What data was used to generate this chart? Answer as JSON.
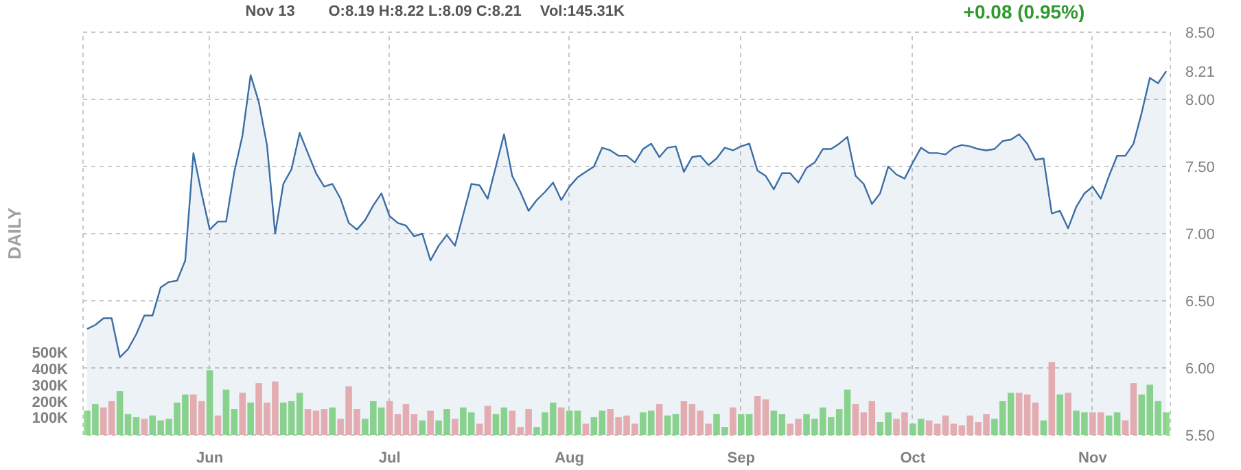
{
  "chart_data": {
    "type": "area",
    "categories": [
      null,
      null,
      null,
      null,
      null,
      null,
      null,
      null,
      null,
      null,
      null,
      null,
      null,
      null,
      null,
      "Jun",
      null,
      null,
      null,
      null,
      null,
      null,
      null,
      null,
      null,
      null,
      null,
      null,
      null,
      null,
      null,
      null,
      null,
      null,
      null,
      null,
      null,
      "Jul",
      null,
      null,
      null,
      null,
      null,
      null,
      null,
      null,
      null,
      null,
      null,
      null,
      null,
      null,
      null,
      null,
      null,
      null,
      null,
      null,
      null,
      "Aug",
      null,
      null,
      null,
      null,
      null,
      null,
      null,
      null,
      null,
      null,
      null,
      null,
      null,
      null,
      null,
      null,
      null,
      null,
      null,
      null,
      "Sep",
      null,
      null,
      null,
      null,
      null,
      null,
      null,
      null,
      null,
      null,
      null,
      null,
      null,
      null,
      null,
      null,
      null,
      null,
      null,
      null,
      "Oct",
      null,
      null,
      null,
      null,
      null,
      null,
      null,
      null,
      null,
      null,
      null,
      null,
      null,
      null,
      null,
      null,
      null,
      null,
      null,
      null,
      null,
      "Nov",
      null,
      null,
      null,
      null,
      null,
      null,
      null,
      null,
      null
    ],
    "series": [
      {
        "color": "#3b6ea5",
        "values": [
          6.29,
          6.32,
          6.37,
          6.37,
          6.08,
          6.14,
          6.25,
          6.39,
          6.39,
          6.6,
          6.64,
          6.65,
          6.8,
          7.6,
          7.3,
          7.03,
          7.09,
          7.09,
          7.46,
          7.73,
          8.18,
          7.98,
          7.66,
          7.0,
          7.37,
          7.48,
          7.75,
          7.6,
          7.45,
          7.35,
          7.37,
          7.26,
          7.08,
          7.03,
          7.1,
          7.21,
          7.3,
          7.13,
          7.08,
          7.06,
          6.98,
          7.0,
          6.8,
          6.91,
          6.99,
          6.91,
          7.14,
          7.37,
          7.36,
          7.26,
          7.5,
          7.74,
          7.43,
          7.31,
          7.17,
          7.25,
          7.31,
          7.38,
          7.25,
          7.35,
          7.42,
          7.46,
          7.5,
          7.64,
          7.62,
          7.58,
          7.58,
          7.53,
          7.63,
          7.67,
          7.57,
          7.64,
          7.65,
          7.46,
          7.57,
          7.58,
          7.51,
          7.56,
          7.64,
          7.62,
          7.65,
          7.67,
          7.47,
          7.43,
          7.33,
          7.45,
          7.45,
          7.38,
          7.49,
          7.53,
          7.63,
          7.63,
          7.67,
          7.72,
          7.43,
          7.37,
          7.22,
          7.3,
          7.5,
          7.44,
          7.41,
          7.53,
          7.64,
          7.6,
          7.6,
          7.59,
          7.64,
          7.66,
          7.65,
          7.63,
          7.62,
          7.63,
          7.69,
          7.7,
          7.74,
          7.67,
          7.55,
          7.56,
          7.15,
          7.17,
          7.04,
          7.2,
          7.3,
          7.35,
          7.26,
          7.43,
          7.58,
          7.58,
          7.67,
          7.9,
          8.16,
          8.12,
          8.21
        ]
      },
      {
        "type": "bar",
        "axis": "y2",
        "values": [
          150,
          190,
          170,
          210,
          270,
          130,
          110,
          100,
          120,
          90,
          100,
          200,
          250,
          250,
          210,
          400,
          120,
          280,
          160,
          260,
          200,
          320,
          200,
          330,
          200,
          210,
          260,
          160,
          150,
          160,
          170,
          100,
          300,
          160,
          100,
          210,
          170,
          210,
          130,
          190,
          130,
          90,
          150,
          90,
          160,
          100,
          170,
          140,
          70,
          180,
          130,
          170,
          150,
          50,
          160,
          50,
          140,
          200,
          170,
          150,
          150,
          70,
          110,
          150,
          160,
          110,
          120,
          70,
          140,
          150,
          190,
          120,
          130,
          210,
          190,
          150,
          70,
          130,
          50,
          170,
          130,
          130,
          240,
          220,
          150,
          130,
          70,
          100,
          130,
          100,
          170,
          110,
          160,
          280,
          190,
          140,
          210,
          80,
          140,
          100,
          140,
          70,
          100,
          90,
          70,
          120,
          70,
          60,
          120,
          80,
          130,
          100,
          210,
          260,
          260,
          250,
          200,
          90,
          450,
          250,
          260,
          150,
          140,
          140,
          140,
          120,
          140,
          90,
          320,
          250,
          310,
          210,
          140
        ],
        "colors": [
          "#90dc8c",
          "#90dc8c",
          "#f5b3b3",
          "#f5b3b3",
          "#90dc8c",
          "#90dc8c",
          "#90dc8c",
          "#f5b3b3",
          "#90dc8c",
          "#90dc8c",
          "#90dc8c",
          "#90dc8c",
          "#90dc8c",
          "#f5b3b3",
          "#f5b3b3",
          "#90dc8c",
          "#f5b3b3",
          "#90dc8c",
          "#90dc8c",
          "#f5b3b3",
          "#90dc8c",
          "#f5b3b3",
          "#f5b3b3",
          "#f5b3b3",
          "#90dc8c",
          "#90dc8c",
          "#90dc8c",
          "#f5b3b3",
          "#f5b3b3",
          "#f5b3b3",
          "#90dc8c",
          "#f5b3b3",
          "#f5b3b3",
          "#f5b3b3",
          "#90dc8c",
          "#90dc8c",
          "#90dc8c",
          "#f5b3b3",
          "#f5b3b3",
          "#f5b3b3",
          "#f5b3b3",
          "#90dc8c",
          "#f5b3b3",
          "#90dc8c",
          "#90dc8c",
          "#f5b3b3",
          "#90dc8c",
          "#90dc8c",
          "#f5b3b3",
          "#f5b3b3",
          "#90dc8c",
          "#90dc8c",
          "#f5b3b3",
          "#f5b3b3",
          "#f5b3b3",
          "#90dc8c",
          "#90dc8c",
          "#90dc8c",
          "#f5b3b3",
          "#90dc8c",
          "#90dc8c",
          "#f5b3b3",
          "#90dc8c",
          "#90dc8c",
          "#f5b3b3",
          "#f5b3b3",
          "#f5b3b3",
          "#f5b3b3",
          "#90dc8c",
          "#90dc8c",
          "#f5b3b3",
          "#90dc8c",
          "#90dc8c",
          "#f5b3b3",
          "#f5b3b3",
          "#f5b3b3",
          "#f5b3b3",
          "#90dc8c",
          "#90dc8c",
          "#f5b3b3",
          "#90dc8c",
          "#90dc8c",
          "#f5b3b3",
          "#f5b3b3",
          "#90dc8c",
          "#90dc8c",
          "#f5b3b3",
          "#f5b3b3",
          "#90dc8c",
          "#90dc8c",
          "#90dc8c",
          "#90dc8c",
          "#90dc8c",
          "#90dc8c",
          "#f5b3b3",
          "#f5b3b3",
          "#f5b3b3",
          "#90dc8c",
          "#90dc8c",
          "#f5b3b3",
          "#f5b3b3",
          "#90dc8c",
          "#90dc8c",
          "#f5b3b3",
          "#f5b3b3",
          "#f5b3b3",
          "#f5b3b3",
          "#f5b3b3",
          "#f5b3b3",
          "#f5b3b3",
          "#f5b3b3",
          "#90dc8c",
          "#90dc8c",
          "#90dc8c",
          "#f5b3b3",
          "#f5b3b3",
          "#f5b3b3",
          "#90dc8c",
          "#f5b3b3",
          "#90dc8c",
          "#f5b3b3",
          "#90dc8c",
          "#90dc8c",
          "#f5b3b3",
          "#f5b3b3",
          "#90dc8c",
          "#90dc8c",
          "#f5b3b3",
          "#f5b3b3",
          "#90dc8c",
          "#90dc8c",
          "#90dc8c",
          "#90dc8c"
        ]
      }
    ],
    "ylim": [
      5.5,
      8.5
    ],
    "yticks": [
      {
        "value": 5.5,
        "label": "5.50"
      },
      {
        "value": 6.0,
        "label": "6.00"
      },
      {
        "value": 6.5,
        "label": "6.50"
      },
      {
        "value": 7.0,
        "label": "7.00"
      },
      {
        "value": 7.5,
        "label": "7.50"
      },
      {
        "value": 8.0,
        "label": "8.00"
      },
      {
        "value": 8.5,
        "label": "8.50"
      },
      {
        "value": 8.21,
        "label": "8.21"
      }
    ],
    "y2lim": [
      0,
      2480
    ],
    "y2ticks": [
      {
        "value": 100,
        "label": "100K"
      },
      {
        "value": 200,
        "label": "200K"
      },
      {
        "value": 300,
        "label": "300K"
      },
      {
        "value": 400,
        "label": "400K"
      },
      {
        "value": 500,
        "label": "500K"
      }
    ],
    "grid": true,
    "annotations": [
      "Nov 13",
      "O:8.19  H:8.22  L:8.09  C:8.21",
      "Vol:145.31K",
      "+0.08 (0.95%)",
      "DAILY"
    ]
  }
}
